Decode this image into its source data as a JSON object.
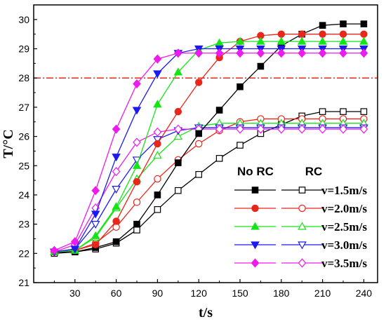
{
  "chart_data": {
    "type": "line",
    "xlabel": "t/s",
    "ylabel": "T/°C",
    "xlim": [
      0,
      250
    ],
    "ylim": [
      21,
      30.5
    ],
    "xticks": [
      30,
      60,
      90,
      120,
      150,
      180,
      210,
      240
    ],
    "yticks": [
      21,
      22,
      23,
      24,
      25,
      26,
      27,
      28,
      29,
      30
    ],
    "grid": false,
    "legend": {
      "placement": "bottom-right",
      "headers": [
        "No RC",
        "RC"
      ],
      "labels": [
        "v=1.5m/s",
        "v=2.0m/s",
        "v=2.5m/s",
        "v=3.0m/s",
        "v=3.5m/s"
      ]
    },
    "reference_line": {
      "y": 28,
      "color": "#e8261b",
      "style": "dash-dot"
    },
    "x": [
      15,
      30,
      45,
      60,
      75,
      90,
      105,
      120,
      135,
      150,
      165,
      180,
      195,
      210,
      225,
      240
    ],
    "series": [
      {
        "name": "v=1.5m/s",
        "group": "No RC",
        "marker": "square",
        "filled": true,
        "color": "#000000",
        "values": [
          22.05,
          22.05,
          22.2,
          22.4,
          23.0,
          24.0,
          25.1,
          26.1,
          26.9,
          27.7,
          28.4,
          29.1,
          29.5,
          29.8,
          29.85,
          29.85
        ]
      },
      {
        "name": "v=2.0m/s",
        "group": "No RC",
        "marker": "circle",
        "filled": true,
        "color": "#e8261b",
        "values": [
          22.05,
          22.1,
          22.3,
          23.1,
          24.45,
          25.75,
          26.85,
          27.85,
          28.7,
          29.25,
          29.45,
          29.5,
          29.5,
          29.5,
          29.5,
          29.5
        ]
      },
      {
        "name": "v=2.5m/s",
        "group": "No RC",
        "marker": "triangle-up",
        "filled": true,
        "color": "#15e515",
        "values": [
          22.05,
          22.1,
          22.6,
          23.6,
          25.0,
          27.1,
          28.2,
          28.95,
          29.2,
          29.25,
          29.25,
          29.25,
          29.25,
          29.25,
          29.25,
          29.25
        ]
      },
      {
        "name": "v=3.0m/s",
        "group": "No RC",
        "marker": "triangle-down",
        "filled": true,
        "color": "#1b1bf0",
        "values": [
          22.05,
          22.15,
          23.35,
          25.3,
          26.9,
          28.15,
          28.85,
          29.0,
          29.0,
          29.0,
          29.0,
          29.0,
          29.0,
          29.0,
          29.0,
          29.0
        ]
      },
      {
        "name": "v=3.5m/s",
        "group": "No RC",
        "marker": "diamond",
        "filled": true,
        "color": "#ee1bee",
        "values": [
          22.1,
          22.4,
          24.15,
          26.25,
          27.8,
          28.65,
          28.85,
          28.85,
          28.85,
          28.85,
          28.85,
          28.85,
          28.85,
          28.85,
          28.85,
          28.85
        ]
      },
      {
        "name": "v=1.5m/s",
        "group": "RC",
        "marker": "square",
        "filled": false,
        "color": "#000000",
        "values": [
          22.0,
          22.05,
          22.15,
          22.35,
          22.8,
          23.5,
          24.15,
          24.7,
          25.25,
          25.7,
          26.1,
          26.4,
          26.7,
          26.85,
          26.85,
          26.85
        ]
      },
      {
        "name": "v=2.0m/s",
        "group": "RC",
        "marker": "circle",
        "filled": false,
        "color": "#e8261b",
        "values": [
          22.05,
          22.1,
          22.35,
          22.9,
          23.75,
          24.55,
          25.2,
          25.75,
          26.2,
          26.5,
          26.6,
          26.6,
          26.6,
          26.6,
          26.6,
          26.6
        ]
      },
      {
        "name": "v=2.5m/s",
        "group": "RC",
        "marker": "triangle-up",
        "filled": false,
        "color": "#15e515",
        "values": [
          22.05,
          22.1,
          22.55,
          23.55,
          24.55,
          25.35,
          26.0,
          26.35,
          26.45,
          26.45,
          26.45,
          26.45,
          26.45,
          26.45,
          26.45,
          26.45
        ]
      },
      {
        "name": "v=3.0m/s",
        "group": "RC",
        "marker": "triangle-down",
        "filled": false,
        "color": "#1b1bf0",
        "values": [
          22.05,
          22.15,
          23.0,
          24.2,
          25.2,
          25.9,
          26.2,
          26.3,
          26.3,
          26.3,
          26.3,
          26.3,
          26.3,
          26.3,
          26.3,
          26.3
        ]
      },
      {
        "name": "v=3.5m/s",
        "group": "RC",
        "marker": "diamond",
        "filled": false,
        "color": "#ee1bee",
        "values": [
          22.05,
          22.3,
          23.55,
          24.8,
          25.8,
          26.15,
          26.25,
          26.25,
          26.25,
          26.25,
          26.25,
          26.25,
          26.25,
          26.25,
          26.25,
          26.25
        ]
      }
    ]
  }
}
